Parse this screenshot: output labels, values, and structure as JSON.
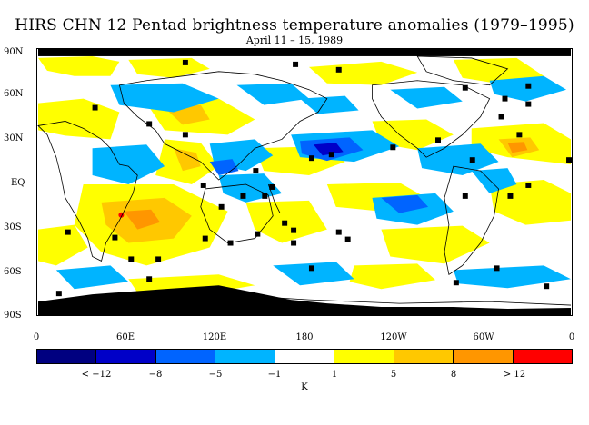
{
  "title": "HIRS CHN 12 Pentad brightness temperature anomalies (1979–1995)",
  "subtitle": "April 11 – 15, 1989",
  "lat_labels": [
    "90N",
    "60N",
    "30N",
    "EQ",
    "30S",
    "60S",
    "90S"
  ],
  "lon_labels": [
    "0",
    "60E",
    "120E",
    "180",
    "120W",
    "60W",
    "0"
  ],
  "colorbar": {
    "colors": [
      "#000080",
      "#0000c8",
      "#0064ff",
      "#00b4ff",
      "#ffffff",
      "#ffff00",
      "#ffc800",
      "#ff9600",
      "#ff0000"
    ],
    "labels": [
      "< −12",
      "−8",
      "−5",
      "−1",
      "1",
      "5",
      "8",
      "> 12"
    ],
    "unit": "K"
  },
  "colors": {
    "missing": "#000000",
    "coast": "#000000"
  }
}
